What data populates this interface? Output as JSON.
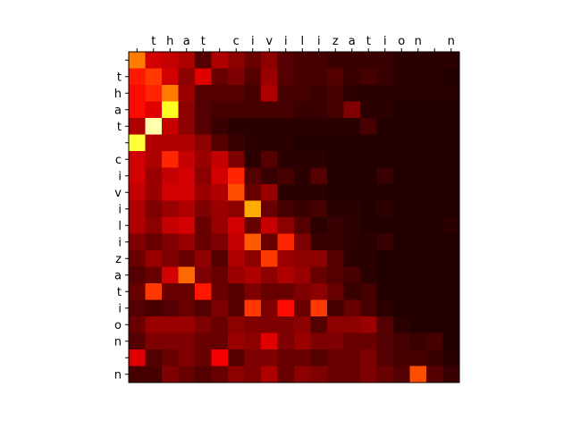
{
  "chart_data": {
    "type": "heatmap",
    "title": "",
    "xlabel": "",
    "ylabel": "",
    "x_tick_labels": [
      "",
      "t",
      "h",
      "a",
      "t",
      "",
      "c",
      "i",
      "v",
      "i",
      "l",
      "i",
      "z",
      "a",
      "t",
      "i",
      "o",
      "n",
      "",
      "n"
    ],
    "y_tick_labels": [
      "",
      "t",
      "h",
      "a",
      "t",
      "",
      "c",
      "i",
      "v",
      "i",
      "l",
      "i",
      "z",
      "a",
      "t",
      "i",
      "o",
      "n",
      "",
      "n"
    ],
    "x_ticks_position": "top",
    "colormap": "hot",
    "value_range": [
      0,
      1
    ],
    "grid": false,
    "legend": "none",
    "values": [
      [
        0.55,
        0.3,
        0.28,
        0.25,
        0.12,
        0.25,
        0.2,
        0.15,
        0.2,
        0.12,
        0.1,
        0.1,
        0.08,
        0.08,
        0.08,
        0.08,
        0.06,
        0.06,
        0.06,
        0.06
      ],
      [
        0.4,
        0.45,
        0.3,
        0.2,
        0.32,
        0.15,
        0.18,
        0.12,
        0.22,
        0.12,
        0.1,
        0.1,
        0.12,
        0.08,
        0.1,
        0.08,
        0.06,
        0.06,
        0.06,
        0.05
      ],
      [
        0.38,
        0.42,
        0.55,
        0.22,
        0.12,
        0.12,
        0.12,
        0.1,
        0.25,
        0.1,
        0.1,
        0.08,
        0.1,
        0.06,
        0.06,
        0.06,
        0.06,
        0.06,
        0.06,
        0.06
      ],
      [
        0.38,
        0.32,
        0.78,
        0.2,
        0.12,
        0.1,
        0.1,
        0.1,
        0.1,
        0.1,
        0.08,
        0.08,
        0.1,
        0.18,
        0.06,
        0.06,
        0.05,
        0.05,
        0.05,
        0.05
      ],
      [
        0.25,
        0.92,
        0.28,
        0.2,
        0.12,
        0.08,
        0.06,
        0.06,
        0.06,
        0.06,
        0.06,
        0.06,
        0.06,
        0.06,
        0.1,
        0.05,
        0.05,
        0.05,
        0.05,
        0.05
      ],
      [
        0.8,
        0.25,
        0.25,
        0.25,
        0.2,
        0.12,
        0.08,
        0.06,
        0.06,
        0.06,
        0.05,
        0.05,
        0.05,
        0.05,
        0.05,
        0.05,
        0.05,
        0.05,
        0.05,
        0.05
      ],
      [
        0.3,
        0.25,
        0.42,
        0.28,
        0.22,
        0.28,
        0.18,
        0.06,
        0.12,
        0.06,
        0.06,
        0.06,
        0.05,
        0.05,
        0.05,
        0.05,
        0.05,
        0.05,
        0.05,
        0.05
      ],
      [
        0.3,
        0.22,
        0.28,
        0.3,
        0.2,
        0.3,
        0.42,
        0.12,
        0.08,
        0.1,
        0.06,
        0.12,
        0.05,
        0.05,
        0.05,
        0.08,
        0.05,
        0.05,
        0.05,
        0.05
      ],
      [
        0.28,
        0.22,
        0.3,
        0.3,
        0.22,
        0.25,
        0.48,
        0.15,
        0.22,
        0.06,
        0.06,
        0.06,
        0.05,
        0.05,
        0.05,
        0.05,
        0.05,
        0.05,
        0.05,
        0.05
      ],
      [
        0.25,
        0.18,
        0.22,
        0.25,
        0.18,
        0.22,
        0.2,
        0.62,
        0.15,
        0.1,
        0.08,
        0.1,
        0.06,
        0.06,
        0.05,
        0.06,
        0.05,
        0.05,
        0.05,
        0.05
      ],
      [
        0.25,
        0.2,
        0.28,
        0.3,
        0.15,
        0.22,
        0.3,
        0.15,
        0.28,
        0.2,
        0.12,
        0.06,
        0.08,
        0.06,
        0.05,
        0.05,
        0.05,
        0.05,
        0.05,
        0.06
      ],
      [
        0.18,
        0.15,
        0.18,
        0.22,
        0.15,
        0.18,
        0.28,
        0.5,
        0.15,
        0.42,
        0.18,
        0.08,
        0.08,
        0.06,
        0.06,
        0.08,
        0.05,
        0.05,
        0.05,
        0.05
      ],
      [
        0.15,
        0.22,
        0.18,
        0.15,
        0.2,
        0.12,
        0.25,
        0.2,
        0.45,
        0.22,
        0.2,
        0.2,
        0.12,
        0.06,
        0.06,
        0.05,
        0.05,
        0.05,
        0.05,
        0.05
      ],
      [
        0.12,
        0.15,
        0.3,
        0.52,
        0.18,
        0.15,
        0.22,
        0.25,
        0.2,
        0.25,
        0.22,
        0.15,
        0.12,
        0.1,
        0.06,
        0.05,
        0.05,
        0.05,
        0.05,
        0.05
      ],
      [
        0.15,
        0.45,
        0.15,
        0.15,
        0.4,
        0.15,
        0.12,
        0.18,
        0.15,
        0.15,
        0.18,
        0.2,
        0.15,
        0.08,
        0.1,
        0.05,
        0.05,
        0.05,
        0.05,
        0.05
      ],
      [
        0.12,
        0.1,
        0.12,
        0.15,
        0.12,
        0.18,
        0.12,
        0.45,
        0.18,
        0.38,
        0.15,
        0.45,
        0.1,
        0.15,
        0.1,
        0.06,
        0.05,
        0.05,
        0.05,
        0.05
      ],
      [
        0.15,
        0.22,
        0.22,
        0.22,
        0.18,
        0.15,
        0.2,
        0.18,
        0.18,
        0.18,
        0.2,
        0.12,
        0.2,
        0.2,
        0.22,
        0.12,
        0.06,
        0.05,
        0.05,
        0.05
      ],
      [
        0.12,
        0.18,
        0.18,
        0.18,
        0.15,
        0.15,
        0.22,
        0.2,
        0.32,
        0.18,
        0.22,
        0.18,
        0.18,
        0.15,
        0.15,
        0.12,
        0.1,
        0.08,
        0.1,
        0.05
      ],
      [
        0.32,
        0.12,
        0.15,
        0.18,
        0.15,
        0.35,
        0.12,
        0.18,
        0.18,
        0.15,
        0.15,
        0.12,
        0.15,
        0.15,
        0.18,
        0.12,
        0.1,
        0.1,
        0.08,
        0.06
      ],
      [
        0.1,
        0.1,
        0.18,
        0.15,
        0.12,
        0.15,
        0.2,
        0.18,
        0.25,
        0.15,
        0.2,
        0.18,
        0.15,
        0.15,
        0.18,
        0.15,
        0.12,
        0.48,
        0.12,
        0.08
      ]
    ]
  }
}
